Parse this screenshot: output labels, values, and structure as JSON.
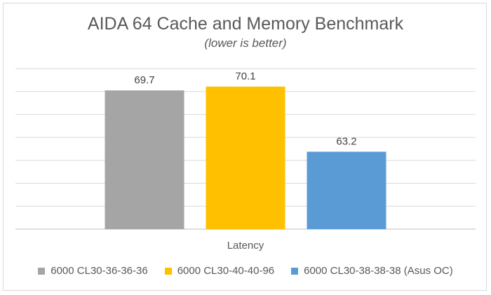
{
  "chart_data": {
    "type": "bar",
    "title": "AIDA 64 Cache and Memory Benchmark",
    "subtitle": "(lower is better)",
    "categories": [
      "Latency"
    ],
    "series": [
      {
        "name": "6000 CL30-36-36-36",
        "values": [
          69.7
        ],
        "color": "#a5a5a5"
      },
      {
        "name": "6000 CL30-40-40-96",
        "values": [
          70.1
        ],
        "color": "#ffc000"
      },
      {
        "name": "6000 CL30-38-38-38 (Asus OC)",
        "values": [
          63.2
        ],
        "color": "#5b9bd5"
      }
    ],
    "ylim": [
      55,
      72
    ],
    "grid": true,
    "legend": "bottom",
    "data_labels": true
  }
}
